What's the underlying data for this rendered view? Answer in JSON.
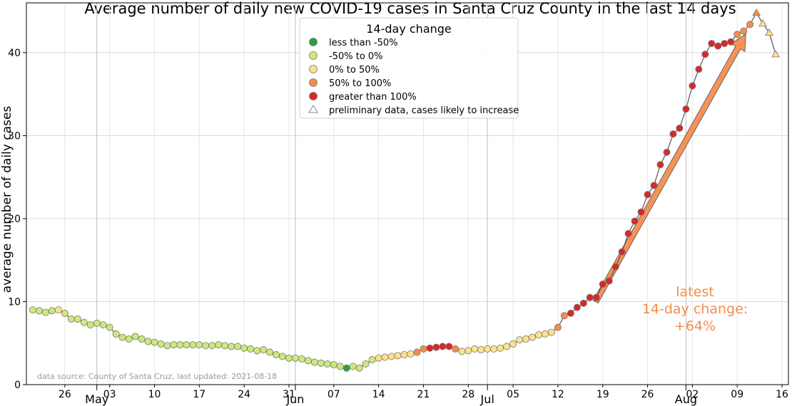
{
  "chart_data": {
    "type": "scatter",
    "title": "Average number of daily new COVID-19 cases in Santa Cruz County in the last 14 days",
    "ylabel": "average number of daily cases",
    "xlabel": "",
    "x_start": "2021-04-21",
    "xlim": [
      "2021-04-20",
      "2021-08-17"
    ],
    "ylim": [
      0,
      46
    ],
    "y_ticks": [
      0,
      10,
      20,
      30,
      40
    ],
    "x_ticks": [
      {
        "date": "2021-04-26",
        "label": "26"
      },
      {
        "date": "2021-05-03",
        "label": "03"
      },
      {
        "date": "2021-05-10",
        "label": "10"
      },
      {
        "date": "2021-05-17",
        "label": "17"
      },
      {
        "date": "2021-05-24",
        "label": "24"
      },
      {
        "date": "2021-05-31",
        "label": "31"
      },
      {
        "date": "2021-06-07",
        "label": "07"
      },
      {
        "date": "2021-06-14",
        "label": "14"
      },
      {
        "date": "2021-06-21",
        "label": "21"
      },
      {
        "date": "2021-06-28",
        "label": "28"
      },
      {
        "date": "2021-07-05",
        "label": "05"
      },
      {
        "date": "2021-07-12",
        "label": "12"
      },
      {
        "date": "2021-07-19",
        "label": "19"
      },
      {
        "date": "2021-07-26",
        "label": "26"
      },
      {
        "date": "2021-08-02",
        "label": "02"
      },
      {
        "date": "2021-08-09",
        "label": "09"
      },
      {
        "date": "2021-08-16",
        "label": "16"
      }
    ],
    "month_labels": [
      {
        "date": "2021-05-01",
        "label": "May"
      },
      {
        "date": "2021-06-01",
        "label": "Jun"
      },
      {
        "date": "2021-07-01",
        "label": "Jul"
      },
      {
        "date": "2021-08-01",
        "label": "Aug"
      }
    ],
    "grid": true,
    "legend": {
      "title": "14-day change",
      "placement": "top-center",
      "entries": [
        {
          "label": "less than -50%",
          "color": "#2e9e44",
          "marker": "circle"
        },
        {
          "label": "-50% to 0%",
          "color": "#cde97a",
          "marker": "circle"
        },
        {
          "label": "0% to 50%",
          "color": "#fde28c",
          "marker": "circle"
        },
        {
          "label": "50% to 100%",
          "color": "#f58c4d",
          "marker": "circle"
        },
        {
          "label": "greater than 100%",
          "color": "#d7292a",
          "marker": "circle"
        },
        {
          "label": "preliminary data, cases likely to increase",
          "color": "#ffffff",
          "marker": "triangle"
        }
      ]
    },
    "category_colors": {
      "dg": "#2e9e44",
      "lg": "#cde97a",
      "y": "#fde28c",
      "o": "#f58c4d",
      "r": "#d7292a"
    },
    "values": [
      9.0,
      8.9,
      8.7,
      8.9,
      9.0,
      8.6,
      7.9,
      7.9,
      7.5,
      7.2,
      7.4,
      7.2,
      6.9,
      6.1,
      5.7,
      5.5,
      5.8,
      5.5,
      5.2,
      5.1,
      4.9,
      4.7,
      4.8,
      4.8,
      4.8,
      4.8,
      4.8,
      4.7,
      4.7,
      4.8,
      4.7,
      4.6,
      4.6,
      4.4,
      4.3,
      4.1,
      4.2,
      3.9,
      3.6,
      3.4,
      3.2,
      3.2,
      3.1,
      2.9,
      2.7,
      2.6,
      2.5,
      2.4,
      2.2,
      2.0,
      2.2,
      2.0,
      2.5,
      3.0,
      3.2,
      3.3,
      3.4,
      3.5,
      3.6,
      3.7,
      3.9,
      4.3,
      4.4,
      4.5,
      4.6,
      4.6,
      4.3,
      4.0,
      4.1,
      4.3,
      4.2,
      4.3,
      4.3,
      4.4,
      4.6,
      4.9,
      5.4,
      5.5,
      5.7,
      6.0,
      6.1,
      6.3,
      6.9,
      8.3,
      8.6,
      9.3,
      9.8,
      10.5,
      10.5,
      12.1,
      12.5,
      14.2,
      16.0,
      18.2,
      19.7,
      20.8,
      22.9,
      24.0,
      26.5,
      28.0,
      30.2,
      30.9,
      33.2,
      36.0,
      38.0,
      39.8,
      41.1,
      40.8,
      41.1,
      41.3,
      42.2,
      42.6,
      43.4,
      44.8,
      43.5,
      42.4,
      39.8
    ],
    "categories": [
      "lg",
      "lg",
      "lg",
      "lg",
      "y",
      "lg",
      "lg",
      "lg",
      "lg",
      "lg",
      "lg",
      "lg",
      "lg",
      "lg",
      "lg",
      "lg",
      "lg",
      "lg",
      "lg",
      "lg",
      "lg",
      "lg",
      "lg",
      "lg",
      "lg",
      "lg",
      "lg",
      "lg",
      "lg",
      "lg",
      "lg",
      "lg",
      "lg",
      "lg",
      "lg",
      "lg",
      "lg",
      "lg",
      "lg",
      "lg",
      "lg",
      "lg",
      "lg",
      "lg",
      "lg",
      "lg",
      "lg",
      "lg",
      "lg",
      "dg",
      "lg",
      "lg",
      "lg",
      "lg",
      "y",
      "y",
      "y",
      "y",
      "y",
      "y",
      "o",
      "o",
      "r",
      "r",
      "r",
      "r",
      "o",
      "y",
      "y",
      "y",
      "y",
      "y",
      "y",
      "y",
      "y",
      "y",
      "y",
      "y",
      "y",
      "y",
      "y",
      "y",
      "o",
      "o",
      "r",
      "r",
      "r",
      "r",
      "r",
      "r",
      "r",
      "r",
      "r",
      "r",
      "r",
      "r",
      "r",
      "r",
      "r",
      "r",
      "r",
      "r",
      "r",
      "r",
      "r",
      "r",
      "r",
      "r",
      "r",
      "r",
      "o",
      "o",
      "o",
      "o",
      "y",
      "y",
      "y"
    ],
    "preliminary_count": 4,
    "annotation": [
      "latest",
      "14-day change:",
      "+64%"
    ],
    "annotation_color": "#f58c4d",
    "source_text": "data source: County of Santa Cruz, last updated: 2021-08-18"
  }
}
